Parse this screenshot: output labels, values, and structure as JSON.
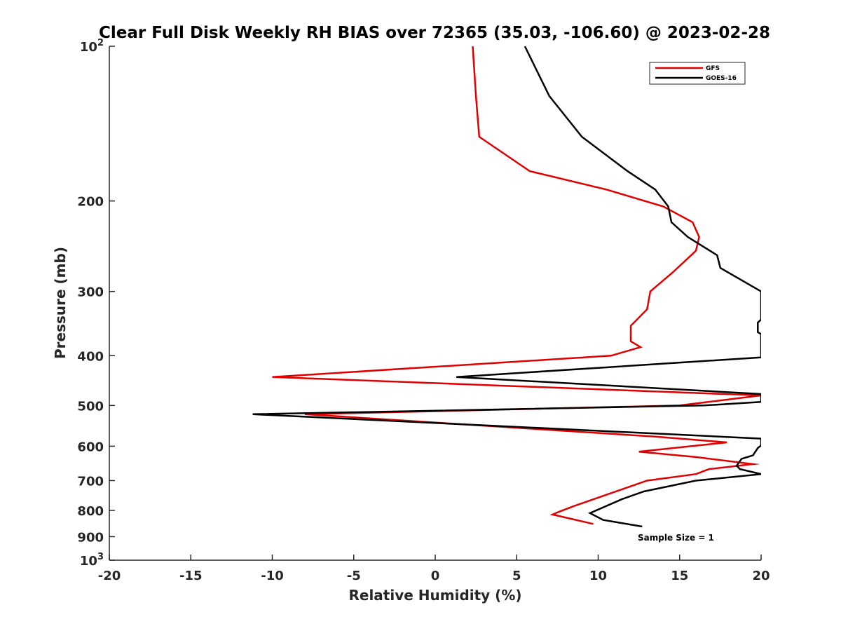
{
  "chart_data": {
    "type": "line",
    "title": "Clear Full Disk Weekly RH BIAS over 72365 (35.03, -106.60) @ 2023-02-28",
    "xlabel": "Relative Humidity (%)",
    "ylabel": "Pressure (mb)",
    "xlim": [
      -20,
      20
    ],
    "ylim": [
      100,
      1000
    ],
    "yscale": "log",
    "y_reversed": true,
    "grid": false,
    "legend_position": "top-right",
    "x_ticks": [
      "-20",
      "-15",
      "-10",
      "-5",
      "0",
      "5",
      "10",
      "15",
      "20"
    ],
    "y_ticks": [
      {
        "value": 100,
        "label": "10",
        "exponent": "2"
      },
      {
        "value": 200,
        "label": "200",
        "exponent": ""
      },
      {
        "value": 300,
        "label": "300",
        "exponent": ""
      },
      {
        "value": 400,
        "label": "400",
        "exponent": ""
      },
      {
        "value": 500,
        "label": "500",
        "exponent": ""
      },
      {
        "value": 600,
        "label": "600",
        "exponent": ""
      },
      {
        "value": 700,
        "label": "700",
        "exponent": ""
      },
      {
        "value": 800,
        "label": "800",
        "exponent": ""
      },
      {
        "value": 900,
        "label": "900",
        "exponent": ""
      },
      {
        "value": 1000,
        "label": "10",
        "exponent": "3"
      }
    ],
    "series": [
      {
        "name": "GFS",
        "color": "#e00000",
        "points": [
          [
            2.3,
            100
          ],
          [
            2.5,
            125
          ],
          [
            2.7,
            150
          ],
          [
            5.8,
            175
          ],
          [
            10.5,
            190
          ],
          [
            14.0,
            205
          ],
          [
            15.8,
            220
          ],
          [
            16.2,
            235
          ],
          [
            16.0,
            250
          ],
          [
            14.6,
            275
          ],
          [
            13.2,
            300
          ],
          [
            13.0,
            325
          ],
          [
            12.0,
            350
          ],
          [
            12.0,
            375
          ],
          [
            12.6,
            385
          ],
          [
            10.8,
            400
          ],
          [
            -10.0,
            440
          ],
          [
            20,
            478
          ],
          [
            15.0,
            500
          ],
          [
            -8.0,
            520
          ],
          [
            13.5,
            575
          ],
          [
            17.9,
            590
          ],
          [
            12.5,
            615
          ],
          [
            16.0,
            630
          ],
          [
            19.5,
            650
          ],
          [
            16.8,
            665
          ],
          [
            16.0,
            680
          ],
          [
            13.0,
            700
          ],
          [
            8.5,
            785
          ],
          [
            7.6,
            805
          ],
          [
            7.2,
            815
          ],
          [
            9.7,
            850
          ]
        ]
      },
      {
        "name": "GOES-16",
        "color": "#000000",
        "points": [
          [
            5.5,
            100
          ],
          [
            7.0,
            125
          ],
          [
            9.0,
            150
          ],
          [
            11.8,
            175
          ],
          [
            13.5,
            190
          ],
          [
            14.3,
            205
          ],
          [
            14.5,
            220
          ],
          [
            15.5,
            235
          ],
          [
            17.3,
            255
          ],
          [
            17.5,
            270
          ],
          [
            20,
            300
          ],
          [
            20,
            340
          ],
          [
            19.8,
            345
          ],
          [
            19.8,
            360
          ],
          [
            20,
            363
          ],
          [
            20,
            403
          ],
          [
            1.3,
            440
          ],
          [
            20,
            475
          ],
          [
            20,
            492
          ],
          [
            16.5,
            500
          ],
          [
            -11.2,
            520
          ],
          [
            20,
            580
          ],
          [
            20,
            598
          ],
          [
            19.8,
            605
          ],
          [
            19.5,
            625
          ],
          [
            18.8,
            635
          ],
          [
            18.5,
            655
          ],
          [
            18.7,
            665
          ],
          [
            20,
            680
          ],
          [
            16.0,
            700
          ],
          [
            12.8,
            735
          ],
          [
            11.5,
            760
          ],
          [
            9.5,
            810
          ],
          [
            10.3,
            835
          ],
          [
            12.7,
            860
          ]
        ]
      }
    ],
    "legend": [
      {
        "label": "GFS",
        "color": "#e00000"
      },
      {
        "label": "GOES-16",
        "color": "#000000"
      }
    ],
    "annotation": "Sample Size = 1"
  }
}
